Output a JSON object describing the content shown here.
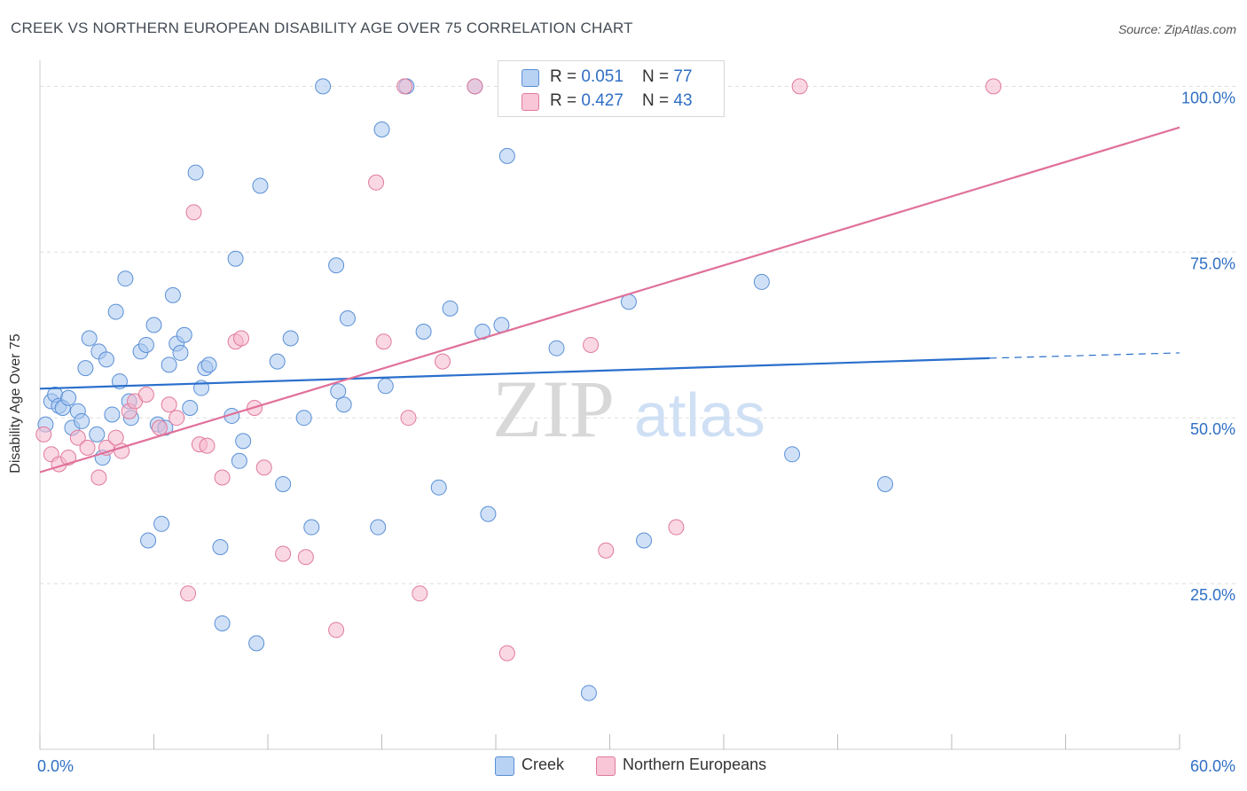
{
  "header": {
    "title": "CREEK VS NORTHERN EUROPEAN DISABILITY AGE OVER 75 CORRELATION CHART",
    "source": "Source: ZipAtlas.com"
  },
  "watermark": {
    "part1": "ZIP",
    "part2": "atlas"
  },
  "legend": {
    "rows": [
      {
        "r_label": "R = ",
        "r_value": "0.051",
        "n_label": "N = ",
        "n_value": "77"
      },
      {
        "r_label": "R = ",
        "r_value": "0.427",
        "n_label": "N = ",
        "n_value": "43"
      }
    ]
  },
  "bottom_legend": {
    "creek": "Creek",
    "northern": "Northern Europeans"
  },
  "chart_data": {
    "type": "scatter",
    "title": "CREEK VS NORTHERN EUROPEAN DISABILITY AGE OVER 75 CORRELATION CHART",
    "xlabel": "",
    "ylabel": "Disability Age Over 75",
    "xlim": [
      0,
      60
    ],
    "ylim": [
      0,
      105
    ],
    "x_tick_labels": {
      "min": "0.0%",
      "max": "60.0%"
    },
    "y_ticks": [
      {
        "value": 25,
        "label": "25.0%"
      },
      {
        "value": 50,
        "label": "50.0%"
      },
      {
        "value": 75,
        "label": "75.0%"
      },
      {
        "value": 100,
        "label": "100.0%"
      }
    ],
    "grid": true,
    "legend_position": "top-center",
    "colors": {
      "creek_fill": "#a9c8f0",
      "creek_stroke": "#5a8fd6",
      "creek_line": "#2a6fcc",
      "northern_fill": "#f5b8cc",
      "northern_stroke": "#e07a9c",
      "northern_line": "#e0709a"
    },
    "series": [
      {
        "name": "Creek",
        "trend": {
          "x0": 0,
          "y0": 54.4,
          "x1": 50,
          "y1": 59.0,
          "dash_to": 60,
          "dash_y": 59.8
        },
        "points": [
          [
            0.3,
            49.0
          ],
          [
            0.6,
            52.5
          ],
          [
            0.8,
            53.5
          ],
          [
            1.0,
            51.8
          ],
          [
            1.2,
            51.5
          ],
          [
            1.5,
            53.0
          ],
          [
            1.7,
            48.5
          ],
          [
            2.0,
            51.0
          ],
          [
            2.2,
            49.5
          ],
          [
            2.4,
            57.5
          ],
          [
            2.6,
            62.0
          ],
          [
            3.0,
            47.5
          ],
          [
            3.1,
            60.0
          ],
          [
            3.3,
            44.0
          ],
          [
            3.5,
            58.8
          ],
          [
            3.8,
            50.5
          ],
          [
            4.0,
            66.0
          ],
          [
            4.2,
            55.5
          ],
          [
            4.5,
            71.0
          ],
          [
            4.7,
            52.5
          ],
          [
            4.8,
            50.0
          ],
          [
            5.3,
            60.0
          ],
          [
            5.6,
            61.0
          ],
          [
            5.7,
            31.5
          ],
          [
            6.0,
            64.0
          ],
          [
            6.2,
            49.0
          ],
          [
            6.4,
            34.0
          ],
          [
            6.6,
            48.5
          ],
          [
            6.8,
            58.0
          ],
          [
            7.0,
            68.5
          ],
          [
            7.2,
            61.2
          ],
          [
            7.4,
            59.8
          ],
          [
            7.6,
            62.5
          ],
          [
            7.9,
            51.5
          ],
          [
            8.2,
            87.0
          ],
          [
            8.5,
            54.5
          ],
          [
            8.7,
            57.5
          ],
          [
            8.9,
            58.0
          ],
          [
            9.5,
            30.5
          ],
          [
            9.6,
            19.0
          ],
          [
            10.1,
            50.3
          ],
          [
            10.3,
            74.0
          ],
          [
            10.5,
            43.5
          ],
          [
            10.7,
            46.5
          ],
          [
            11.4,
            16.0
          ],
          [
            11.6,
            85.0
          ],
          [
            12.5,
            58.5
          ],
          [
            12.8,
            40.0
          ],
          [
            13.2,
            62.0
          ],
          [
            13.9,
            50.0
          ],
          [
            14.3,
            33.5
          ],
          [
            14.9,
            100
          ],
          [
            15.6,
            73.0
          ],
          [
            15.7,
            54.0
          ],
          [
            16.0,
            52.0
          ],
          [
            16.2,
            65.0
          ],
          [
            17.8,
            33.5
          ],
          [
            18.0,
            93.5
          ],
          [
            18.2,
            54.8
          ],
          [
            19.3,
            100
          ],
          [
            20.2,
            63.0
          ],
          [
            21.0,
            39.5
          ],
          [
            21.6,
            66.5
          ],
          [
            22.9,
            100
          ],
          [
            23.3,
            63.0
          ],
          [
            23.6,
            35.5
          ],
          [
            24.3,
            64.0
          ],
          [
            24.6,
            89.5
          ],
          [
            27.2,
            60.5
          ],
          [
            28.9,
            8.5
          ],
          [
            31.0,
            67.5
          ],
          [
            31.8,
            31.5
          ],
          [
            38.0,
            70.5
          ],
          [
            39.6,
            44.5
          ],
          [
            44.5,
            40.0
          ]
        ]
      },
      {
        "name": "Northern Europeans",
        "trend": {
          "x0": 0,
          "y0": 41.8,
          "x1": 60,
          "y1": 93.8
        },
        "points": [
          [
            0.2,
            47.5
          ],
          [
            0.6,
            44.5
          ],
          [
            1.0,
            43.0
          ],
          [
            1.5,
            44.0
          ],
          [
            2.0,
            47.0
          ],
          [
            2.5,
            45.5
          ],
          [
            3.1,
            41.0
          ],
          [
            3.5,
            45.5
          ],
          [
            4.0,
            47.0
          ],
          [
            4.3,
            45.0
          ],
          [
            4.7,
            51.0
          ],
          [
            5.0,
            52.5
          ],
          [
            5.6,
            53.5
          ],
          [
            6.3,
            48.5
          ],
          [
            6.8,
            52.0
          ],
          [
            7.2,
            50.0
          ],
          [
            7.8,
            23.5
          ],
          [
            8.1,
            81.0
          ],
          [
            8.4,
            46.0
          ],
          [
            8.8,
            45.8
          ],
          [
            9.6,
            41.0
          ],
          [
            10.3,
            61.5
          ],
          [
            10.6,
            62.0
          ],
          [
            11.3,
            51.5
          ],
          [
            11.8,
            42.5
          ],
          [
            12.8,
            29.5
          ],
          [
            14.0,
            29.0
          ],
          [
            15.6,
            18.0
          ],
          [
            17.7,
            85.5
          ],
          [
            18.1,
            61.5
          ],
          [
            19.2,
            100
          ],
          [
            19.4,
            50.0
          ],
          [
            20.0,
            23.5
          ],
          [
            21.2,
            58.5
          ],
          [
            22.9,
            100
          ],
          [
            24.6,
            14.5
          ],
          [
            26.6,
            100
          ],
          [
            29.0,
            61.0
          ],
          [
            29.8,
            30.0
          ],
          [
            33.5,
            33.5
          ],
          [
            40.0,
            100
          ],
          [
            50.2,
            100
          ]
        ]
      }
    ]
  }
}
